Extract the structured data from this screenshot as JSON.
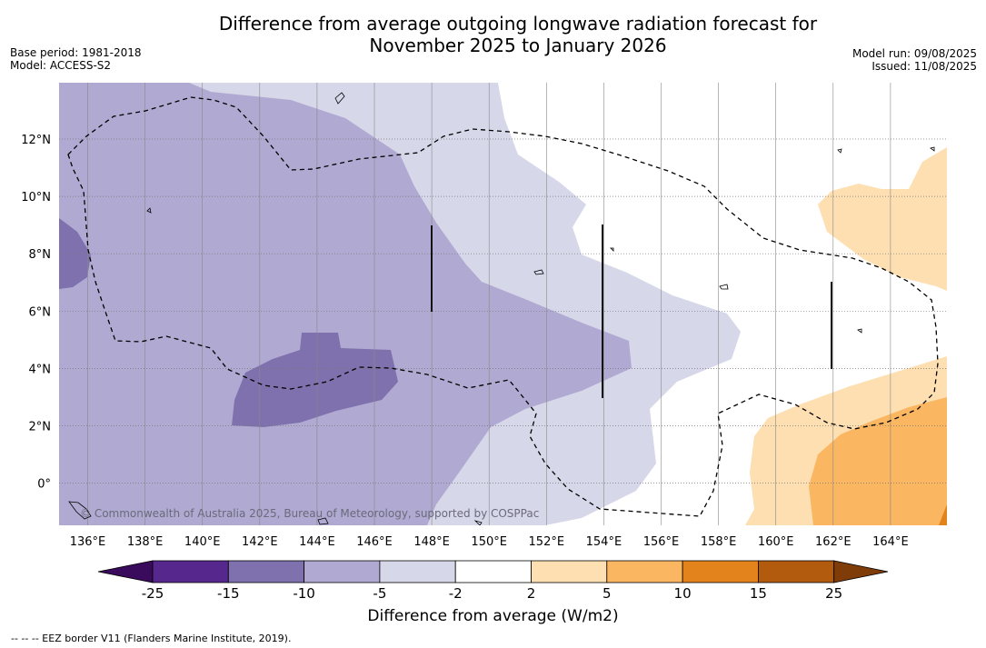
{
  "title_line1": "Difference from average outgoing longwave radiation forecast for",
  "title_line2": "November 2025 to January 2026",
  "base_period": "Base period: 1981-2018",
  "model": "Model: ACCESS-S2",
  "model_run": "Model run: 09/08/2025",
  "issued": "Issued: 11/08/2025",
  "copyright": "© Commonwealth of Australia 2025, Bureau of Meteorology, supported by COSPPac",
  "footnote": "--  --  -- EEZ border V11 (Flanders Marine Institute, 2019).",
  "colorbar": {
    "label": "Difference from average (W/m2)",
    "ticks": [
      "-25",
      "-15",
      "-10",
      "-5",
      "-2",
      "2",
      "5",
      "10",
      "15",
      "25"
    ],
    "colors": [
      "#56288d",
      "#7f71ad",
      "#b0a9d1",
      "#d7d7ea",
      "#ffffff",
      "#fddfb2",
      "#fbb661",
      "#e2831c",
      "#b25b0f"
    ],
    "under_color": "#3a0a5c",
    "over_color": "#7f3b08"
  },
  "axes": {
    "lon_labels": [
      "136°E",
      "138°E",
      "140°E",
      "142°E",
      "144°E",
      "146°E",
      "148°E",
      "150°E",
      "152°E",
      "154°E",
      "156°E",
      "158°E",
      "160°E",
      "162°E",
      "164°E"
    ],
    "lat_labels": [
      "12°N",
      "10°N",
      "8°N",
      "6°N",
      "4°N",
      "2°N",
      "0°"
    ]
  }
}
